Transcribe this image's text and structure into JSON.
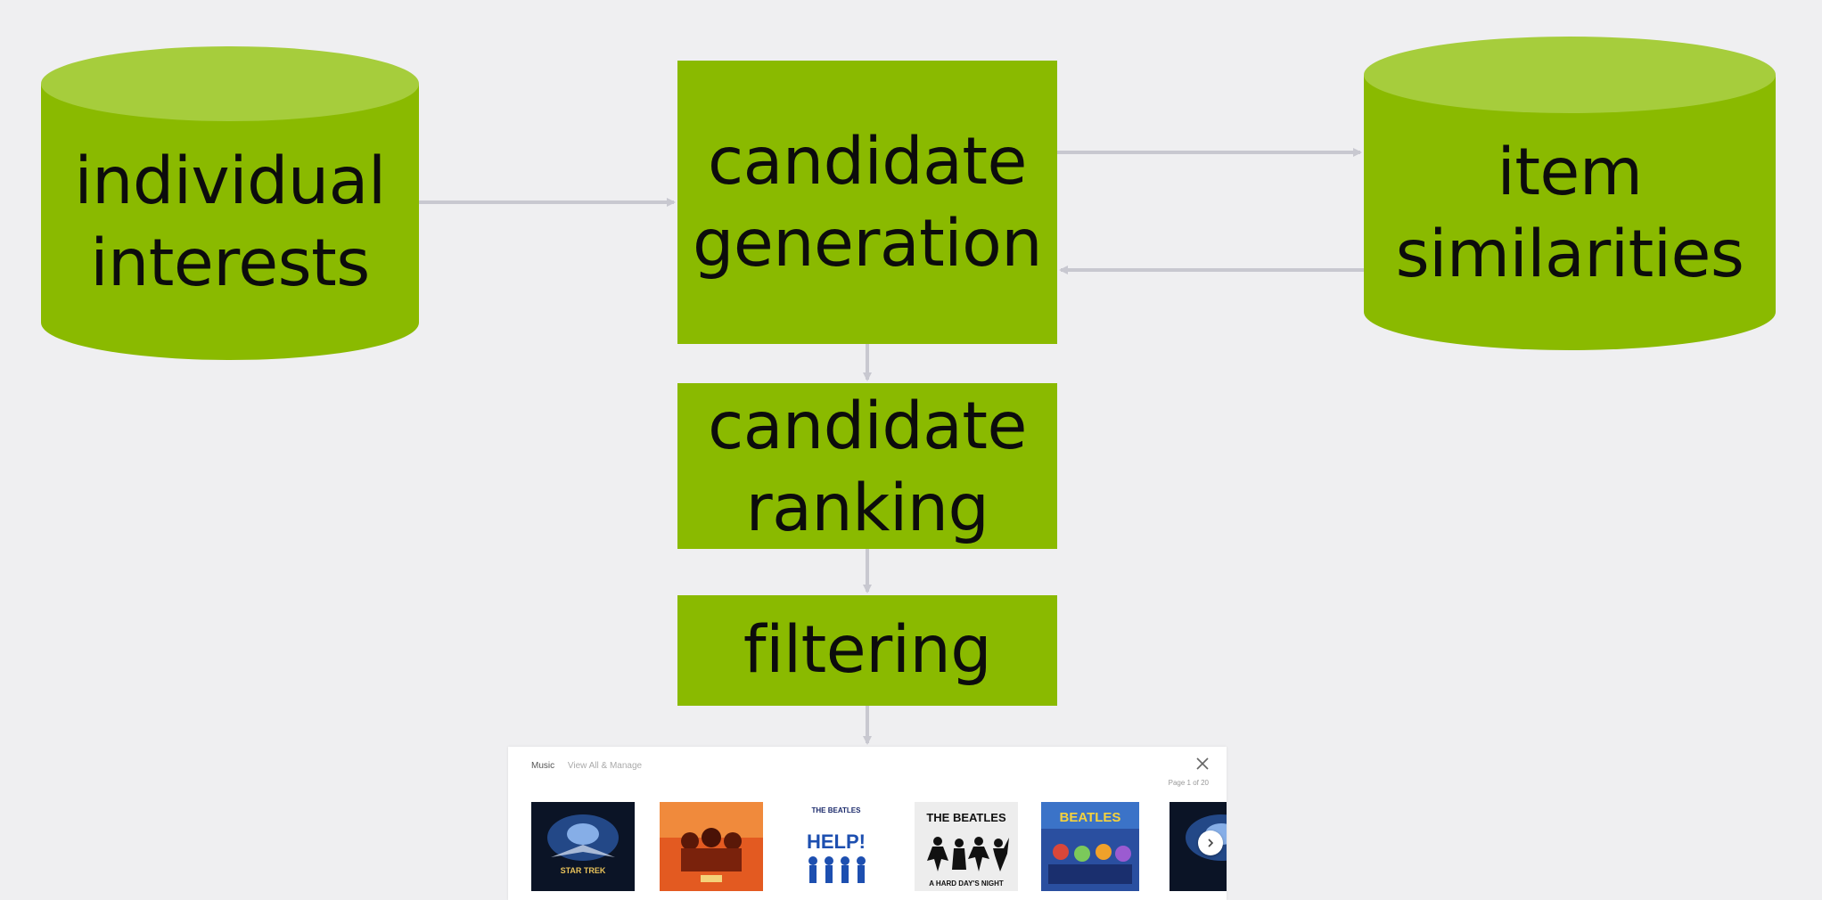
{
  "diagram": {
    "nodes": {
      "individual_interests": {
        "line1": "individual",
        "line2": "interests"
      },
      "candidate_generation": {
        "line1": "candidate",
        "line2": "generation"
      },
      "item_similarities": {
        "line1": "item",
        "line2": "similarities"
      },
      "candidate_ranking": {
        "line1": "candidate",
        "line2": "ranking"
      },
      "filtering": {
        "line1": "filtering"
      }
    },
    "colors": {
      "node_fill": "#8aba00",
      "cylinder_top": "#a6cd3c",
      "arrow": "#c8c8d0",
      "background": "#efeff1"
    }
  },
  "music_panel": {
    "title": "Music",
    "link": "View All & Manage",
    "page": "Page 1 of 20",
    "albums": [
      {
        "title": "STAR TREK"
      },
      {
        "title": ""
      },
      {
        "title": "HELP!",
        "artist": "THE BEATLES"
      },
      {
        "title": "A HARD DAY'S NIGHT",
        "artist": "THE BEATLES"
      },
      {
        "title": "",
        "artist": "BEATLES"
      },
      {
        "title": ""
      }
    ],
    "close_icon": "close-icon",
    "next_icon": "chevron-right-icon"
  }
}
